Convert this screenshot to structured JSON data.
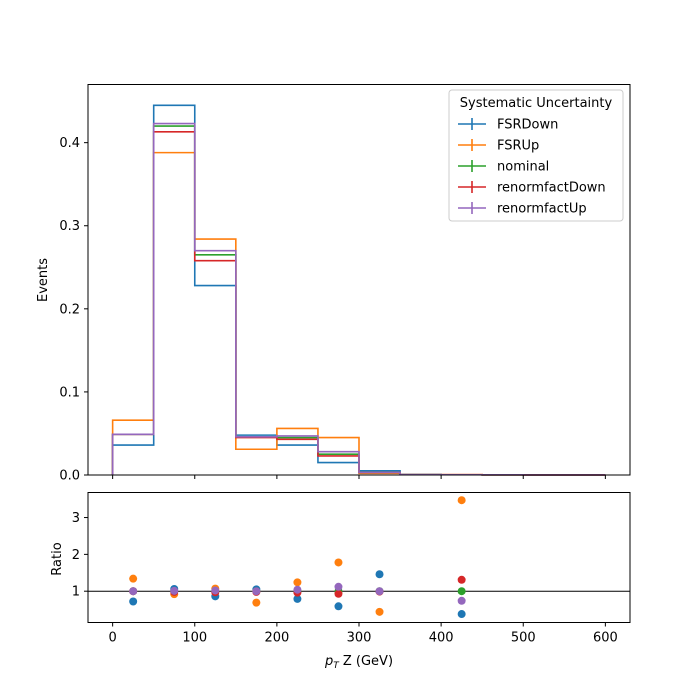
{
  "chart_data": [
    {
      "type": "step",
      "panel": "main",
      "ylabel": "Events",
      "xlim": [
        -30,
        630
      ],
      "ylim": [
        0,
        0.47
      ],
      "yticks": [
        0.0,
        0.1,
        0.2,
        0.3,
        0.4
      ],
      "ytick_labels": [
        "0.0",
        "0.1",
        "0.2",
        "0.3",
        "0.4"
      ],
      "bin_edges": [
        0,
        50,
        100,
        150,
        200,
        250,
        300,
        350,
        400,
        450,
        500,
        550,
        600
      ],
      "legend": {
        "title": "Systematic Uncertainty",
        "placement": "upper right"
      },
      "series": [
        {
          "name": "FSRDown",
          "color": "#1f77b4",
          "values": [
            0.036,
            0.445,
            0.228,
            0.048,
            0.036,
            0.015,
            0.005,
            0.0005,
            0.0003,
            0.0002,
            0.0001,
            0.0001
          ]
        },
        {
          "name": "FSRUp",
          "color": "#ff7f0e",
          "values": [
            0.066,
            0.388,
            0.284,
            0.031,
            0.056,
            0.045,
            0.002,
            0.0004,
            0.0004,
            0.0002,
            0.0001,
            0.0001
          ]
        },
        {
          "name": "nominal",
          "color": "#2ca02c",
          "values": [
            0.049,
            0.42,
            0.265,
            0.046,
            0.045,
            0.025,
            0.003,
            0.0004,
            0.0003,
            0.0002,
            0.0001,
            0.0001
          ]
        },
        {
          "name": "renormfactDown",
          "color": "#d62728",
          "values": [
            0.049,
            0.413,
            0.258,
            0.045,
            0.043,
            0.023,
            0.003,
            0.0004,
            0.0004,
            0.0002,
            0.0001,
            0.0001
          ]
        },
        {
          "name": "renormfactUp",
          "color": "#9467bd",
          "values": [
            0.049,
            0.423,
            0.27,
            0.046,
            0.047,
            0.028,
            0.003,
            0.0004,
            0.0003,
            0.0002,
            0.0001,
            0.0001
          ]
        }
      ]
    },
    {
      "type": "scatter",
      "panel": "ratio",
      "xlabel_prefix": "p",
      "xlabel_sub": "T",
      "xlabel_suffix": " Z (GeV)",
      "ylabel": "Ratio",
      "xlim": [
        -30,
        630
      ],
      "ylim": [
        0.15,
        3.68
      ],
      "xticks": [
        0,
        100,
        200,
        300,
        400,
        500,
        600
      ],
      "xtick_labels": [
        "0",
        "100",
        "200",
        "300",
        "400",
        "500",
        "600"
      ],
      "yticks": [
        1,
        2,
        3
      ],
      "ytick_labels": [
        "1",
        "2",
        "3"
      ],
      "reference_line": 1,
      "reference_color": "#000000",
      "x": [
        25,
        75,
        125,
        175,
        225,
        275,
        325,
        425
      ],
      "series": [
        {
          "name": "FSRDown",
          "color": "#1f77b4",
          "values": [
            0.72,
            1.06,
            0.86,
            1.05,
            0.79,
            0.59,
            1.46,
            0.38
          ]
        },
        {
          "name": "FSRUp",
          "color": "#ff7f0e",
          "values": [
            1.34,
            0.92,
            1.07,
            0.69,
            1.24,
            1.78,
            0.44,
            3.47
          ]
        },
        {
          "name": "nominal",
          "color": "#2ca02c",
          "values": [
            1.0,
            1.0,
            1.0,
            1.0,
            1.0,
            1.0,
            1.0,
            1.0
          ]
        },
        {
          "name": "renormfactDown",
          "color": "#d62728",
          "values": [
            1.0,
            0.98,
            0.97,
            0.98,
            0.96,
            0.93,
            0.99,
            1.31
          ]
        },
        {
          "name": "renormfactUp",
          "color": "#9467bd",
          "values": [
            1.0,
            1.01,
            1.02,
            1.0,
            1.04,
            1.12,
            1.0,
            0.74
          ]
        }
      ]
    }
  ]
}
